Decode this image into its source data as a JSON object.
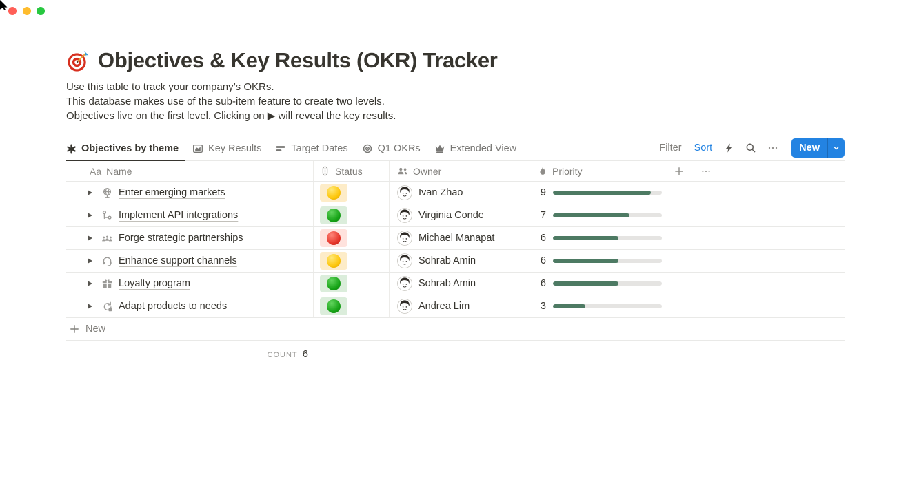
{
  "window": {
    "traffic_lights": {
      "close": "#ff5f57",
      "minimize": "#febc2e",
      "zoom": "#28c840"
    }
  },
  "page": {
    "icon": "dart-target-icon",
    "title": "Objectives & Key Results (OKR) Tracker",
    "description_lines": [
      "Use this table to track your company’s OKRs.",
      "This database makes use of the sub-item feature to create two levels.",
      "Objectives live on the first level. Clicking on ▶ will reveal the key results."
    ]
  },
  "tabs": [
    {
      "label": "Objectives by theme",
      "icon": "asterisk-icon",
      "active": true
    },
    {
      "label": "Key Results",
      "icon": "chart-icon",
      "active": false
    },
    {
      "label": "Target Dates",
      "icon": "timeline-icon",
      "active": false
    },
    {
      "label": "Q1 OKRs",
      "icon": "target-icon",
      "active": false
    },
    {
      "label": "Extended View",
      "icon": "crown-icon",
      "active": false
    }
  ],
  "toolbar": {
    "filter_label": "Filter",
    "sort_label": "Sort",
    "sort_color": "#2383e2",
    "icons": [
      "lightning-icon",
      "search-icon",
      "more-dots-icon"
    ],
    "new_label": "New",
    "new_button_color": "#2383e2"
  },
  "table": {
    "columns": [
      {
        "label": "Name",
        "icon": "aa-text-icon"
      },
      {
        "label": "Status",
        "icon": "traffic-light-icon"
      },
      {
        "label": "Owner",
        "icon": "people-icon"
      },
      {
        "label": "Priority",
        "icon": "flame-icon"
      }
    ],
    "header_extra_icons": [
      "add-column-plus-icon",
      "more-dots-icon"
    ],
    "rows": [
      {
        "name": "Enter emerging markets",
        "icon": "globe",
        "status": "yellow",
        "owner": "Ivan Zhao",
        "priority": 9
      },
      {
        "name": "Implement API integrations",
        "icon": "workflow",
        "status": "green",
        "owner": "Virginia Conde",
        "priority": 7
      },
      {
        "name": "Forge strategic partnerships",
        "icon": "people-group",
        "status": "red",
        "owner": "Michael Manapat",
        "priority": 6
      },
      {
        "name": "Enhance support channels",
        "icon": "headset",
        "status": "yellow",
        "owner": "Sohrab Amin",
        "priority": 6
      },
      {
        "name": "Loyalty program",
        "icon": "gift",
        "status": "green",
        "owner": "Sohrab Amin",
        "priority": 6
      },
      {
        "name": "Adapt products to needs",
        "icon": "shuffle",
        "status": "green",
        "owner": "Andrea Lim",
        "priority": 3
      }
    ],
    "priority_max": 10,
    "status_colors": {
      "yellow": {
        "bg": "#fdecc8",
        "dot": "#fdc60a"
      },
      "green": {
        "bg": "#dbeddb",
        "dot": "#16a316"
      },
      "red": {
        "bg": "#ffe2dd",
        "dot": "#e5352a"
      }
    },
    "priority_bar": {
      "fill": "#4d7a63",
      "track": "#e5e4e2"
    },
    "new_row_label": "New",
    "footer": {
      "count_label": "Count",
      "count_value": "6"
    }
  }
}
